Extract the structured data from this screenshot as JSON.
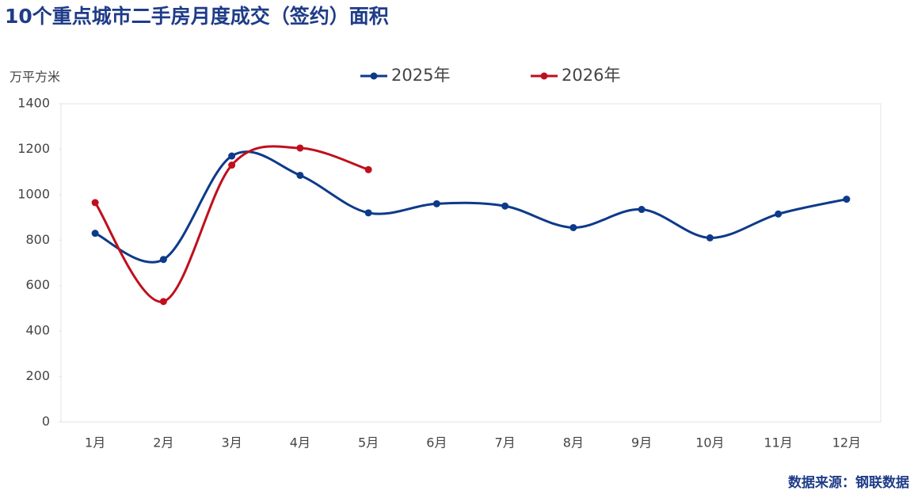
{
  "chart_data": {
    "type": "line",
    "title": "10个重点城市二手房月度成交（签约）面积",
    "y_label": "万平方米",
    "source": "数据来源：钢联数据",
    "categories": [
      "1月",
      "2月",
      "3月",
      "4月",
      "5月",
      "6月",
      "7月",
      "8月",
      "9月",
      "10月",
      "11月",
      "12月"
    ],
    "series": [
      {
        "name": "2025年",
        "color": "#0d3a8a",
        "values": [
          830,
          715,
          1170,
          1085,
          920,
          960,
          950,
          855,
          935,
          810,
          915,
          980
        ]
      },
      {
        "name": "2026年",
        "color": "#c00f1c",
        "values": [
          965,
          530,
          1130,
          1205,
          1110,
          null,
          null,
          null,
          null,
          null,
          null,
          null
        ]
      }
    ],
    "ylim": [
      0,
      1400
    ],
    "yticks": [
      0,
      200,
      400,
      600,
      800,
      1000,
      1200,
      1400
    ],
    "legend": "top",
    "smooth": true
  }
}
